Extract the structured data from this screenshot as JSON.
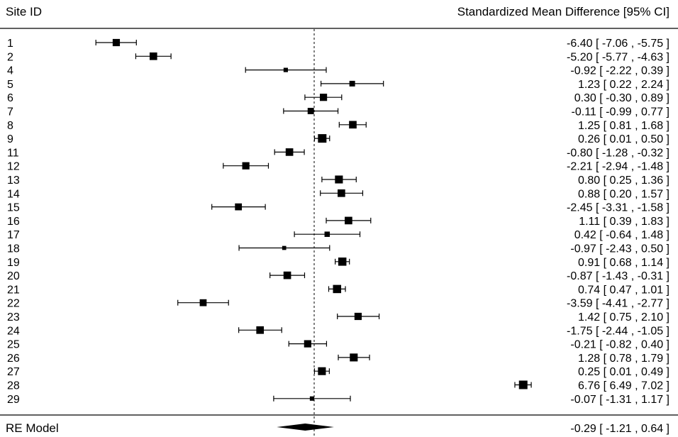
{
  "header": {
    "left_label": "Site ID",
    "right_label": "Standardized Mean Difference [95% CI]"
  },
  "chart_data": {
    "type": "forest",
    "xlim": [
      -7.2,
      7.2
    ],
    "reference_line": 0,
    "studies": [
      {
        "label": "1",
        "est": -6.4,
        "lo": -7.06,
        "hi": -5.75,
        "text": "-6.40 [ -7.06 , -5.75 ]",
        "weight": 0.8
      },
      {
        "label": "2",
        "est": -5.2,
        "lo": -5.77,
        "hi": -4.63,
        "text": "-5.20 [ -5.77 , -4.63 ]",
        "weight": 0.85
      },
      {
        "label": "4",
        "est": -0.92,
        "lo": -2.22,
        "hi": 0.39,
        "text": "-0.92 [ -2.22 ,  0.39 ]",
        "weight": 0.35
      },
      {
        "label": "5",
        "est": 1.23,
        "lo": 0.22,
        "hi": 2.24,
        "text": "1.23 [  0.22 ,  2.24 ]",
        "weight": 0.55
      },
      {
        "label": "6",
        "est": 0.3,
        "lo": -0.3,
        "hi": 0.89,
        "text": "0.30 [ -0.30 ,  0.89 ]",
        "weight": 0.8
      },
      {
        "label": "7",
        "est": -0.11,
        "lo": -0.99,
        "hi": 0.77,
        "text": "-0.11 [ -0.99 ,  0.77 ]",
        "weight": 0.65
      },
      {
        "label": "8",
        "est": 1.25,
        "lo": 0.81,
        "hi": 1.68,
        "text": "1.25 [  0.81 ,  1.68 ]",
        "weight": 0.85
      },
      {
        "label": "9",
        "est": 0.26,
        "lo": 0.01,
        "hi": 0.5,
        "text": "0.26 [  0.01 ,  0.50 ]",
        "weight": 1.0
      },
      {
        "label": "11",
        "est": -0.8,
        "lo": -1.28,
        "hi": -0.32,
        "text": "-0.80 [ -1.28 , -0.32 ]",
        "weight": 0.85
      },
      {
        "label": "12",
        "est": -2.21,
        "lo": -2.94,
        "hi": -1.48,
        "text": "-2.21 [ -2.94 , -1.48 ]",
        "weight": 0.8
      },
      {
        "label": "13",
        "est": 0.8,
        "lo": 0.25,
        "hi": 1.36,
        "text": "0.80 [  0.25 ,  1.36 ]",
        "weight": 0.9
      },
      {
        "label": "14",
        "est": 0.88,
        "lo": 0.2,
        "hi": 1.57,
        "text": "0.88 [  0.20 ,  1.57 ]",
        "weight": 0.85
      },
      {
        "label": "15",
        "est": -2.45,
        "lo": -3.31,
        "hi": -1.58,
        "text": "-2.45 [ -3.31 , -1.58 ]",
        "weight": 0.75
      },
      {
        "label": "16",
        "est": 1.11,
        "lo": 0.39,
        "hi": 1.83,
        "text": "1.11 [  0.39 ,  1.83 ]",
        "weight": 0.85
      },
      {
        "label": "17",
        "est": 0.42,
        "lo": -0.64,
        "hi": 1.48,
        "text": "0.42 [ -0.64 ,  1.48 ]",
        "weight": 0.5
      },
      {
        "label": "18",
        "est": -0.97,
        "lo": -2.43,
        "hi": 0.5,
        "text": "-0.97 [ -2.43 ,  0.50 ]",
        "weight": 0.3
      },
      {
        "label": "19",
        "est": 0.91,
        "lo": 0.68,
        "hi": 1.14,
        "text": "0.91 [  0.68 ,  1.14 ]",
        "weight": 0.95
      },
      {
        "label": "20",
        "est": -0.87,
        "lo": -1.43,
        "hi": -0.31,
        "text": "-0.87 [ -1.43 , -0.31 ]",
        "weight": 0.85
      },
      {
        "label": "21",
        "est": 0.74,
        "lo": 0.47,
        "hi": 1.01,
        "text": "0.74 [  0.47 ,  1.01 ]",
        "weight": 0.95
      },
      {
        "label": "22",
        "est": -3.59,
        "lo": -4.41,
        "hi": -2.77,
        "text": "-3.59 [ -4.41 , -2.77 ]",
        "weight": 0.75
      },
      {
        "label": "23",
        "est": 1.42,
        "lo": 0.75,
        "hi": 2.1,
        "text": "1.42 [  0.75 ,  2.10 ]",
        "weight": 0.8
      },
      {
        "label": "24",
        "est": -1.75,
        "lo": -2.44,
        "hi": -1.05,
        "text": "-1.75 [ -2.44 , -1.05 ]",
        "weight": 0.85
      },
      {
        "label": "25",
        "est": -0.21,
        "lo": -0.82,
        "hi": 0.4,
        "text": "-0.21 [ -0.82 ,  0.40 ]",
        "weight": 0.8
      },
      {
        "label": "26",
        "est": 1.28,
        "lo": 0.78,
        "hi": 1.79,
        "text": "1.28 [  0.78 ,  1.79 ]",
        "weight": 0.9
      },
      {
        "label": "27",
        "est": 0.25,
        "lo": 0.01,
        "hi": 0.49,
        "text": "0.25 [  0.01 ,  0.49 ]",
        "weight": 0.9
      },
      {
        "label": "28",
        "est": 6.76,
        "lo": 6.49,
        "hi": 7.02,
        "text": "6.76 [  6.49 ,  7.02 ]",
        "weight": 1.0
      },
      {
        "label": "29",
        "est": -0.07,
        "lo": -1.31,
        "hi": 1.17,
        "text": "-0.07 [ -1.31 ,  1.17 ]",
        "weight": 0.35
      }
    ],
    "summary": {
      "label": "RE Model",
      "est": -0.29,
      "lo": -1.21,
      "hi": 0.64,
      "text": "-0.29 [ -1.21 ,  0.64 ]"
    }
  }
}
